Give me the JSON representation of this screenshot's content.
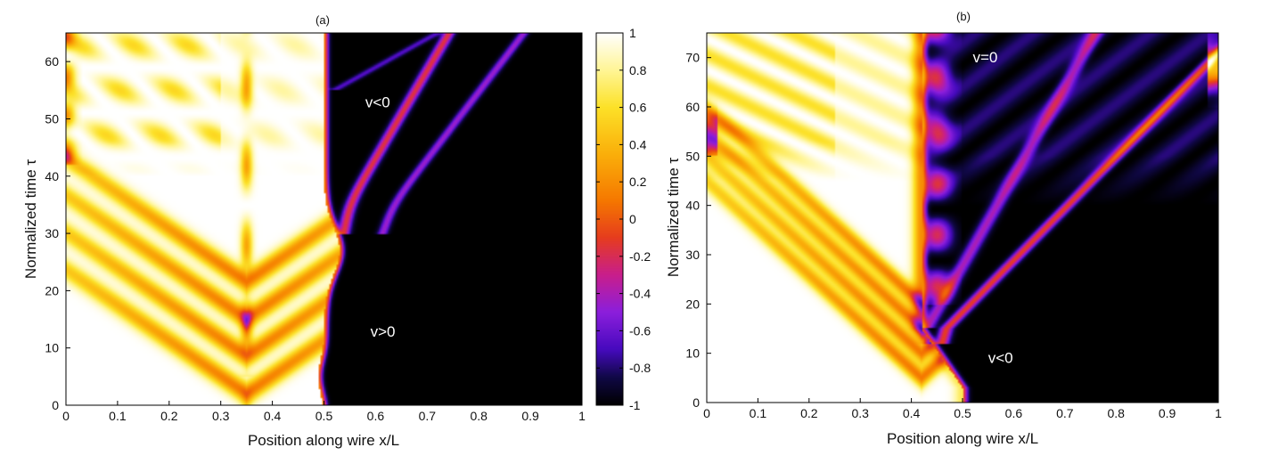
{
  "chart_data": [
    {
      "type": "heatmap",
      "panel_label": "(a)",
      "xlabel": "Position along wire x/L",
      "ylabel": "Normalized time τ",
      "xlim": [
        0,
        1
      ],
      "ylim": [
        0,
        65
      ],
      "xticks": [
        0,
        0.1,
        0.2,
        0.3,
        0.4,
        0.5,
        0.6,
        0.7,
        0.8,
        0.9,
        1
      ],
      "yticks": [
        0,
        10,
        20,
        30,
        40,
        50,
        60
      ],
      "colormap": "white-yellow-orange-red-magenta-purple-blue-black",
      "colorbar": {
        "range": [
          -1,
          1
        ],
        "ticks": [
          1,
          0.8,
          0.6,
          0.4,
          0.2,
          0,
          -0.2,
          -0.4,
          -0.6,
          -0.8,
          -1
        ]
      },
      "annotations": [
        {
          "text": "v<0",
          "x": 0.58,
          "y": 52
        },
        {
          "text": "v>0",
          "x": 0.59,
          "y": 12
        }
      ],
      "features": {
        "front_boundary_x": 0.5,
        "front_bulge_time": 27,
        "v_apex": {
          "x": 0.35,
          "y": 2
        }
      }
    },
    {
      "type": "heatmap",
      "panel_label": "(b)",
      "xlabel": "Position along wire x/L",
      "ylabel": "Normalized time τ",
      "xlim": [
        0,
        1
      ],
      "ylim": [
        0,
        75
      ],
      "xticks": [
        0,
        0.1,
        0.2,
        0.3,
        0.4,
        0.5,
        0.6,
        0.7,
        0.8,
        0.9,
        1
      ],
      "yticks": [
        0,
        10,
        20,
        30,
        40,
        50,
        60,
        70
      ],
      "colormap": "white-yellow-orange-red-magenta-purple-blue-black",
      "annotations": [
        {
          "text": "v=0",
          "x": 0.52,
          "y": 69
        },
        {
          "text": "v<0",
          "x": 0.55,
          "y": 8
        }
      ],
      "features": {
        "front_boundary_x_start": 0.5,
        "front_boundary_x_end": 0.42,
        "front_stop_time": 15,
        "v_apex": {
          "x": 0.42,
          "y": 5
        }
      }
    }
  ]
}
